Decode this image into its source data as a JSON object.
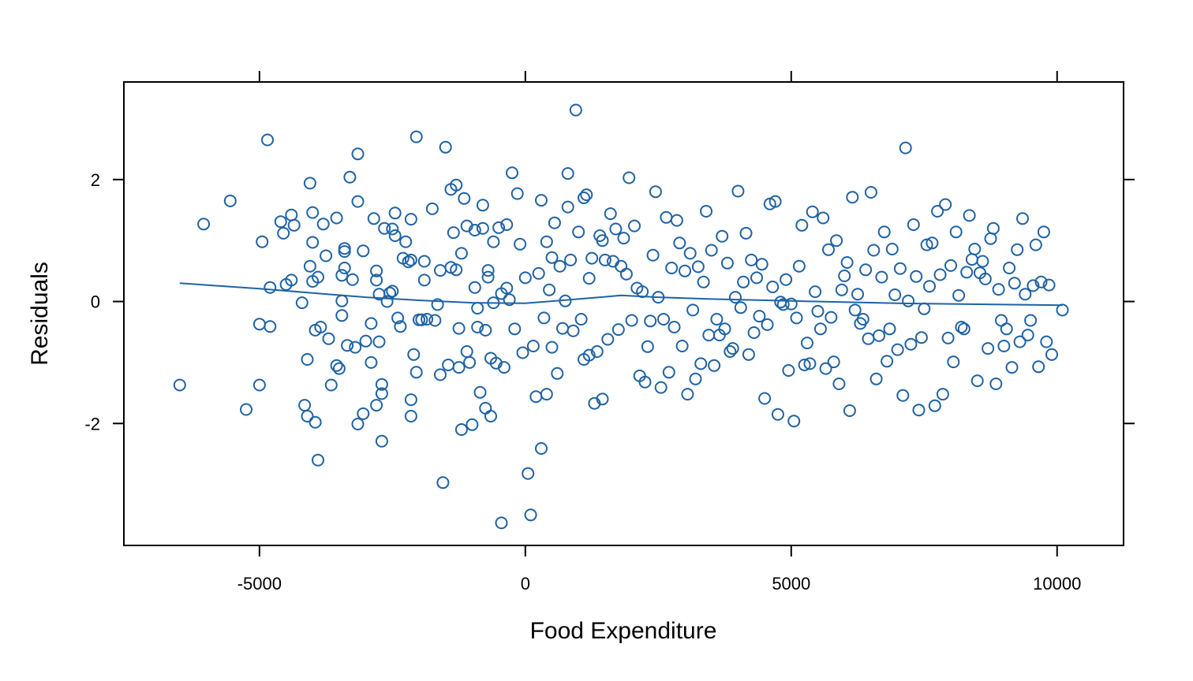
{
  "chart_data": {
    "type": "scatter",
    "title": "",
    "xlabel": "Food Expenditure",
    "ylabel": "Residuals",
    "xlim": [
      -7550,
      11250
    ],
    "ylim": [
      -4.0,
      3.6
    ],
    "xticks": [
      -5000,
      0,
      5000,
      10000
    ],
    "yticks": [
      -2,
      0,
      2
    ],
    "xtick_labels": [
      "-5000",
      "0",
      "5000",
      "10000"
    ],
    "ytick_labels": [
      "-2",
      "0",
      "2"
    ],
    "grid": false,
    "legend": "none",
    "color": "#1f62a4",
    "smooth_line": {
      "x": [
        -6500,
        -5000,
        -4000,
        -3000,
        -2000,
        -1000,
        0,
        1000,
        1800,
        2500,
        3500,
        5000,
        7000,
        9000,
        10100
      ],
      "y": [
        0.3,
        0.21,
        0.14,
        0.07,
        0.02,
        -0.02,
        -0.03,
        0.04,
        0.1,
        0.07,
        0.04,
        0.01,
        -0.03,
        -0.05,
        -0.06
      ]
    },
    "points": [
      [
        -6500,
        -1.37
      ],
      [
        -6050,
        1.27
      ],
      [
        -5550,
        1.65
      ],
      [
        -5250,
        -1.77
      ],
      [
        -5000,
        -0.37
      ],
      [
        -5000,
        -1.37
      ],
      [
        -4950,
        0.98
      ],
      [
        -4850,
        2.65
      ],
      [
        -4800,
        -0.41
      ],
      [
        -4800,
        0.23
      ],
      [
        -4600,
        1.31
      ],
      [
        -4550,
        1.12
      ],
      [
        -4500,
        0.28
      ],
      [
        -4400,
        0.35
      ],
      [
        -4400,
        1.42
      ],
      [
        -4350,
        1.25
      ],
      [
        -4200,
        -0.02
      ],
      [
        -4150,
        -1.7
      ],
      [
        -4100,
        -1.88
      ],
      [
        -4100,
        -0.95
      ],
      [
        -4050,
        0.58
      ],
      [
        -4050,
        1.94
      ],
      [
        -4000,
        0.97
      ],
      [
        -4000,
        1.46
      ],
      [
        -4000,
        0.33
      ],
      [
        -3950,
        -0.47
      ],
      [
        -3950,
        -1.98
      ],
      [
        -3900,
        -2.6
      ],
      [
        -3900,
        0.4
      ],
      [
        -3850,
        -0.42
      ],
      [
        -3800,
        1.27
      ],
      [
        -3750,
        0.75
      ],
      [
        -3700,
        -0.61
      ],
      [
        -3650,
        -1.37
      ],
      [
        -3550,
        1.37
      ],
      [
        -3550,
        -1.05
      ],
      [
        -3500,
        -1.1
      ],
      [
        -3450,
        -0.23
      ],
      [
        -3450,
        0.01
      ],
      [
        -3450,
        0.43
      ],
      [
        -3400,
        0.82
      ],
      [
        -3400,
        0.87
      ],
      [
        -3400,
        0.55
      ],
      [
        -3350,
        -0.72
      ],
      [
        -3300,
        2.04
      ],
      [
        -3250,
        0.36
      ],
      [
        -3200,
        -0.75
      ],
      [
        -3150,
        2.42
      ],
      [
        -3150,
        1.64
      ],
      [
        -3150,
        -2.01
      ],
      [
        -3050,
        0.83
      ],
      [
        -3050,
        -1.84
      ],
      [
        -3000,
        -0.65
      ],
      [
        -2900,
        -0.36
      ],
      [
        -2900,
        -1.0
      ],
      [
        -2850,
        1.36
      ],
      [
        -2800,
        0.35
      ],
      [
        -2800,
        0.5
      ],
      [
        -2800,
        -1.7
      ],
      [
        -2750,
        0.12
      ],
      [
        -2750,
        -0.66
      ],
      [
        -2700,
        -1.51
      ],
      [
        -2700,
        -2.29
      ],
      [
        -2700,
        -1.36
      ],
      [
        -2650,
        1.2
      ],
      [
        -2600,
        0.0
      ],
      [
        -2550,
        0.14
      ],
      [
        -2500,
        1.19
      ],
      [
        -2500,
        0.17
      ],
      [
        -2450,
        1.08
      ],
      [
        -2450,
        1.45
      ],
      [
        -2400,
        -0.27
      ],
      [
        -2350,
        -0.41
      ],
      [
        -2300,
        0.71
      ],
      [
        -2250,
        0.98
      ],
      [
        -2200,
        0.65
      ],
      [
        -2150,
        1.35
      ],
      [
        -2150,
        0.68
      ],
      [
        -2150,
        -1.88
      ],
      [
        -2150,
        -1.61
      ],
      [
        -2100,
        -0.87
      ],
      [
        -2050,
        -1.16
      ],
      [
        -2050,
        2.7
      ],
      [
        -2000,
        -0.3
      ],
      [
        -1950,
        -0.3
      ],
      [
        -1900,
        0.66
      ],
      [
        -1900,
        0.35
      ],
      [
        -1850,
        -0.29
      ],
      [
        -1750,
        1.52
      ],
      [
        -1700,
        -0.31
      ],
      [
        -1650,
        -0.05
      ],
      [
        -1600,
        0.51
      ],
      [
        -1600,
        -1.2
      ],
      [
        -1550,
        -2.97
      ],
      [
        -1500,
        2.53
      ],
      [
        -1450,
        -1.04
      ],
      [
        -1400,
        1.84
      ],
      [
        -1400,
        0.56
      ],
      [
        -1350,
        1.13
      ],
      [
        -1300,
        1.91
      ],
      [
        -1300,
        0.52
      ],
      [
        -1250,
        -0.44
      ],
      [
        -1250,
        -1.08
      ],
      [
        -1200,
        -2.1
      ],
      [
        -1200,
        0.79
      ],
      [
        -1150,
        1.69
      ],
      [
        -1100,
        -0.82
      ],
      [
        -1100,
        1.24
      ],
      [
        -1050,
        -1.0
      ],
      [
        -1000,
        -2.02
      ],
      [
        -950,
        1.17
      ],
      [
        -950,
        0.23
      ],
      [
        -900,
        -0.11
      ],
      [
        -900,
        -0.42
      ],
      [
        -850,
        -1.49
      ],
      [
        -800,
        1.58
      ],
      [
        -800,
        1.2
      ],
      [
        -750,
        -1.75
      ],
      [
        -750,
        -0.47
      ],
      [
        -700,
        0.4
      ],
      [
        -700,
        0.51
      ],
      [
        -650,
        -0.93
      ],
      [
        -650,
        -1.88
      ],
      [
        -600,
        0.98
      ],
      [
        -600,
        -0.02
      ],
      [
        -550,
        -1.01
      ],
      [
        -500,
        1.21
      ],
      [
        -450,
        -3.63
      ],
      [
        -450,
        0.13
      ],
      [
        -400,
        -1.08
      ],
      [
        -350,
        1.26
      ],
      [
        -350,
        0.22
      ],
      [
        -300,
        0.03
      ],
      [
        -250,
        2.11
      ],
      [
        -200,
        -0.45
      ],
      [
        -150,
        1.77
      ],
      [
        -100,
        0.94
      ],
      [
        -50,
        -0.84
      ],
      [
        0,
        0.39
      ],
      [
        50,
        -2.82
      ],
      [
        100,
        -3.5
      ],
      [
        150,
        -0.73
      ],
      [
        200,
        -1.56
      ],
      [
        250,
        0.46
      ],
      [
        300,
        1.66
      ],
      [
        300,
        -2.41
      ],
      [
        350,
        -0.27
      ],
      [
        400,
        0.98
      ],
      [
        400,
        -1.52
      ],
      [
        450,
        0.19
      ],
      [
        500,
        0.72
      ],
      [
        500,
        -0.75
      ],
      [
        550,
        1.29
      ],
      [
        600,
        -1.18
      ],
      [
        650,
        0.58
      ],
      [
        700,
        -0.44
      ],
      [
        750,
        0.01
      ],
      [
        800,
        2.1
      ],
      [
        800,
        1.55
      ],
      [
        850,
        0.68
      ],
      [
        900,
        -0.48
      ],
      [
        950,
        3.14
      ],
      [
        1000,
        1.14
      ],
      [
        1050,
        -0.29
      ],
      [
        1100,
        1.7
      ],
      [
        1100,
        -0.95
      ],
      [
        1150,
        1.75
      ],
      [
        1200,
        0.38
      ],
      [
        1200,
        -0.88
      ],
      [
        1250,
        0.71
      ],
      [
        1300,
        -1.67
      ],
      [
        1350,
        -0.82
      ],
      [
        1400,
        1.08
      ],
      [
        1450,
        1.0
      ],
      [
        1450,
        -1.6
      ],
      [
        1500,
        0.68
      ],
      [
        1550,
        -0.62
      ],
      [
        1600,
        1.44
      ],
      [
        1650,
        0.66
      ],
      [
        1700,
        1.19
      ],
      [
        1750,
        -0.46
      ],
      [
        1800,
        0.58
      ],
      [
        1850,
        1.04
      ],
      [
        1900,
        0.45
      ],
      [
        1950,
        2.03
      ],
      [
        2000,
        -0.31
      ],
      [
        2050,
        1.24
      ],
      [
        2100,
        0.22
      ],
      [
        2150,
        -1.22
      ],
      [
        2200,
        0.16
      ],
      [
        2250,
        -1.32
      ],
      [
        2300,
        -0.74
      ],
      [
        2350,
        -0.32
      ],
      [
        2400,
        0.76
      ],
      [
        2450,
        1.8
      ],
      [
        2500,
        0.07
      ],
      [
        2550,
        -1.41
      ],
      [
        2600,
        -0.29
      ],
      [
        2650,
        1.38
      ],
      [
        2700,
        -1.16
      ],
      [
        2750,
        0.55
      ],
      [
        2800,
        -0.42
      ],
      [
        2850,
        1.33
      ],
      [
        2900,
        0.96
      ],
      [
        2950,
        -0.73
      ],
      [
        3000,
        0.5
      ],
      [
        3050,
        -1.52
      ],
      [
        3100,
        0.79
      ],
      [
        3150,
        -0.14
      ],
      [
        3200,
        -1.27
      ],
      [
        3250,
        0.57
      ],
      [
        3300,
        -1.02
      ],
      [
        3350,
        0.32
      ],
      [
        3400,
        1.48
      ],
      [
        3450,
        -0.55
      ],
      [
        3500,
        0.84
      ],
      [
        3550,
        -1.05
      ],
      [
        3600,
        -0.29
      ],
      [
        3650,
        -0.55
      ],
      [
        3700,
        1.07
      ],
      [
        3750,
        -0.45
      ],
      [
        3800,
        0.63
      ],
      [
        3850,
        -0.82
      ],
      [
        3900,
        -0.77
      ],
      [
        3950,
        0.07
      ],
      [
        4000,
        1.81
      ],
      [
        4050,
        -0.1
      ],
      [
        4100,
        0.32
      ],
      [
        4150,
        1.12
      ],
      [
        4200,
        -0.87
      ],
      [
        4250,
        0.68
      ],
      [
        4300,
        -0.51
      ],
      [
        4350,
        0.39
      ],
      [
        4400,
        -0.24
      ],
      [
        4450,
        0.61
      ],
      [
        4500,
        -1.59
      ],
      [
        4550,
        -0.38
      ],
      [
        4600,
        1.6
      ],
      [
        4650,
        0.24
      ],
      [
        4700,
        1.64
      ],
      [
        4750,
        -1.85
      ],
      [
        4800,
        -0.01
      ],
      [
        4850,
        -0.05
      ],
      [
        4900,
        0.36
      ],
      [
        4950,
        -1.13
      ],
      [
        5000,
        -0.04
      ],
      [
        5050,
        -1.96
      ],
      [
        5100,
        -0.27
      ],
      [
        5150,
        0.58
      ],
      [
        5200,
        1.25
      ],
      [
        5250,
        -1.04
      ],
      [
        5300,
        -0.68
      ],
      [
        5350,
        -1.02
      ],
      [
        5400,
        1.47
      ],
      [
        5450,
        0.16
      ],
      [
        5500,
        -0.16
      ],
      [
        5550,
        -0.45
      ],
      [
        5600,
        1.37
      ],
      [
        5650,
        -1.1
      ],
      [
        5700,
        0.85
      ],
      [
        5750,
        -0.26
      ],
      [
        5800,
        -0.99
      ],
      [
        5850,
        1.0
      ],
      [
        5900,
        -1.35
      ],
      [
        5950,
        0.19
      ],
      [
        6000,
        0.42
      ],
      [
        6050,
        0.64
      ],
      [
        6100,
        -1.79
      ],
      [
        6150,
        1.71
      ],
      [
        6200,
        -0.14
      ],
      [
        6250,
        0.12
      ],
      [
        6300,
        -0.36
      ],
      [
        6350,
        -0.29
      ],
      [
        6400,
        0.52
      ],
      [
        6450,
        -0.61
      ],
      [
        6500,
        1.79
      ],
      [
        6550,
        0.84
      ],
      [
        6600,
        -1.27
      ],
      [
        6650,
        -0.56
      ],
      [
        6700,
        0.4
      ],
      [
        6750,
        1.14
      ],
      [
        6800,
        -0.98
      ],
      [
        6850,
        -0.45
      ],
      [
        6900,
        0.86
      ],
      [
        6950,
        0.11
      ],
      [
        7000,
        -0.79
      ],
      [
        7050,
        0.54
      ],
      [
        7100,
        -1.54
      ],
      [
        7150,
        2.52
      ],
      [
        7200,
        0.01
      ],
      [
        7250,
        -0.7
      ],
      [
        7300,
        1.26
      ],
      [
        7350,
        0.41
      ],
      [
        7400,
        -1.78
      ],
      [
        7450,
        -0.59
      ],
      [
        7500,
        -0.12
      ],
      [
        7550,
        0.93
      ],
      [
        7600,
        0.25
      ],
      [
        7650,
        0.96
      ],
      [
        7700,
        -1.71
      ],
      [
        7750,
        1.48
      ],
      [
        7800,
        0.44
      ],
      [
        7850,
        -1.52
      ],
      [
        7900,
        1.59
      ],
      [
        7950,
        -0.6
      ],
      [
        8000,
        0.59
      ],
      [
        8050,
        -0.99
      ],
      [
        8100,
        1.14
      ],
      [
        8150,
        0.1
      ],
      [
        8200,
        -0.42
      ],
      [
        8250,
        -0.45
      ],
      [
        8300,
        0.48
      ],
      [
        8350,
        1.41
      ],
      [
        8400,
        0.69
      ],
      [
        8450,
        0.86
      ],
      [
        8500,
        -1.3
      ],
      [
        8550,
        0.47
      ],
      [
        8600,
        0.66
      ],
      [
        8650,
        0.37
      ],
      [
        8700,
        -0.77
      ],
      [
        8750,
        1.03
      ],
      [
        8800,
        1.2
      ],
      [
        8850,
        -1.35
      ],
      [
        8900,
        0.2
      ],
      [
        8950,
        -0.31
      ],
      [
        9000,
        -0.73
      ],
      [
        9050,
        -0.45
      ],
      [
        9100,
        0.55
      ],
      [
        9150,
        -1.08
      ],
      [
        9200,
        0.3
      ],
      [
        9250,
        0.85
      ],
      [
        9300,
        -0.66
      ],
      [
        9350,
        1.36
      ],
      [
        9400,
        0.12
      ],
      [
        9450,
        -0.55
      ],
      [
        9500,
        -0.31
      ],
      [
        9550,
        0.26
      ],
      [
        9600,
        0.93
      ],
      [
        9650,
        -1.07
      ],
      [
        9700,
        0.32
      ],
      [
        9750,
        1.14
      ],
      [
        9800,
        -0.66
      ],
      [
        9850,
        0.27
      ],
      [
        9900,
        -0.87
      ],
      [
        10100,
        -0.14
      ]
    ]
  }
}
